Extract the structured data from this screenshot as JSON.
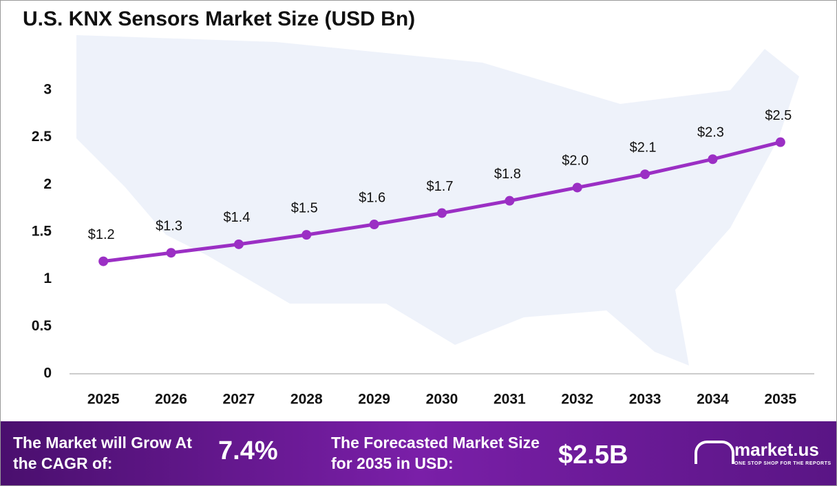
{
  "chart_data": {
    "type": "line",
    "title": "U.S. KNX Sensors Market Size (USD Bn)",
    "categories": [
      "2025",
      "2026",
      "2027",
      "2028",
      "2029",
      "2030",
      "2031",
      "2032",
      "2033",
      "2034",
      "2035"
    ],
    "values": [
      1.19,
      1.28,
      1.37,
      1.47,
      1.58,
      1.7,
      1.83,
      1.97,
      2.11,
      2.27,
      2.45
    ],
    "value_labels": [
      "$1.2",
      "$1.3",
      "$1.4",
      "$1.5",
      "$1.6",
      "$1.7",
      "$1.8",
      "$2.0",
      "$2.1",
      "$2.3",
      "$2.5"
    ],
    "color": "#9b2fc4",
    "ylim": [
      0,
      3
    ],
    "yticks": [
      0,
      0.5,
      1,
      1.5,
      2,
      2.5,
      3
    ],
    "grid": false
  },
  "footer": {
    "cagr_text": "The Market will Grow At the CAGR of:",
    "cagr_value": "7.4%",
    "forecast_text": "The Forecasted Market Size for 2035 in USD:",
    "forecast_value": "$2.5B",
    "brand": "market.us",
    "tagline": "ONE STOP SHOP FOR THE REPORTS"
  }
}
